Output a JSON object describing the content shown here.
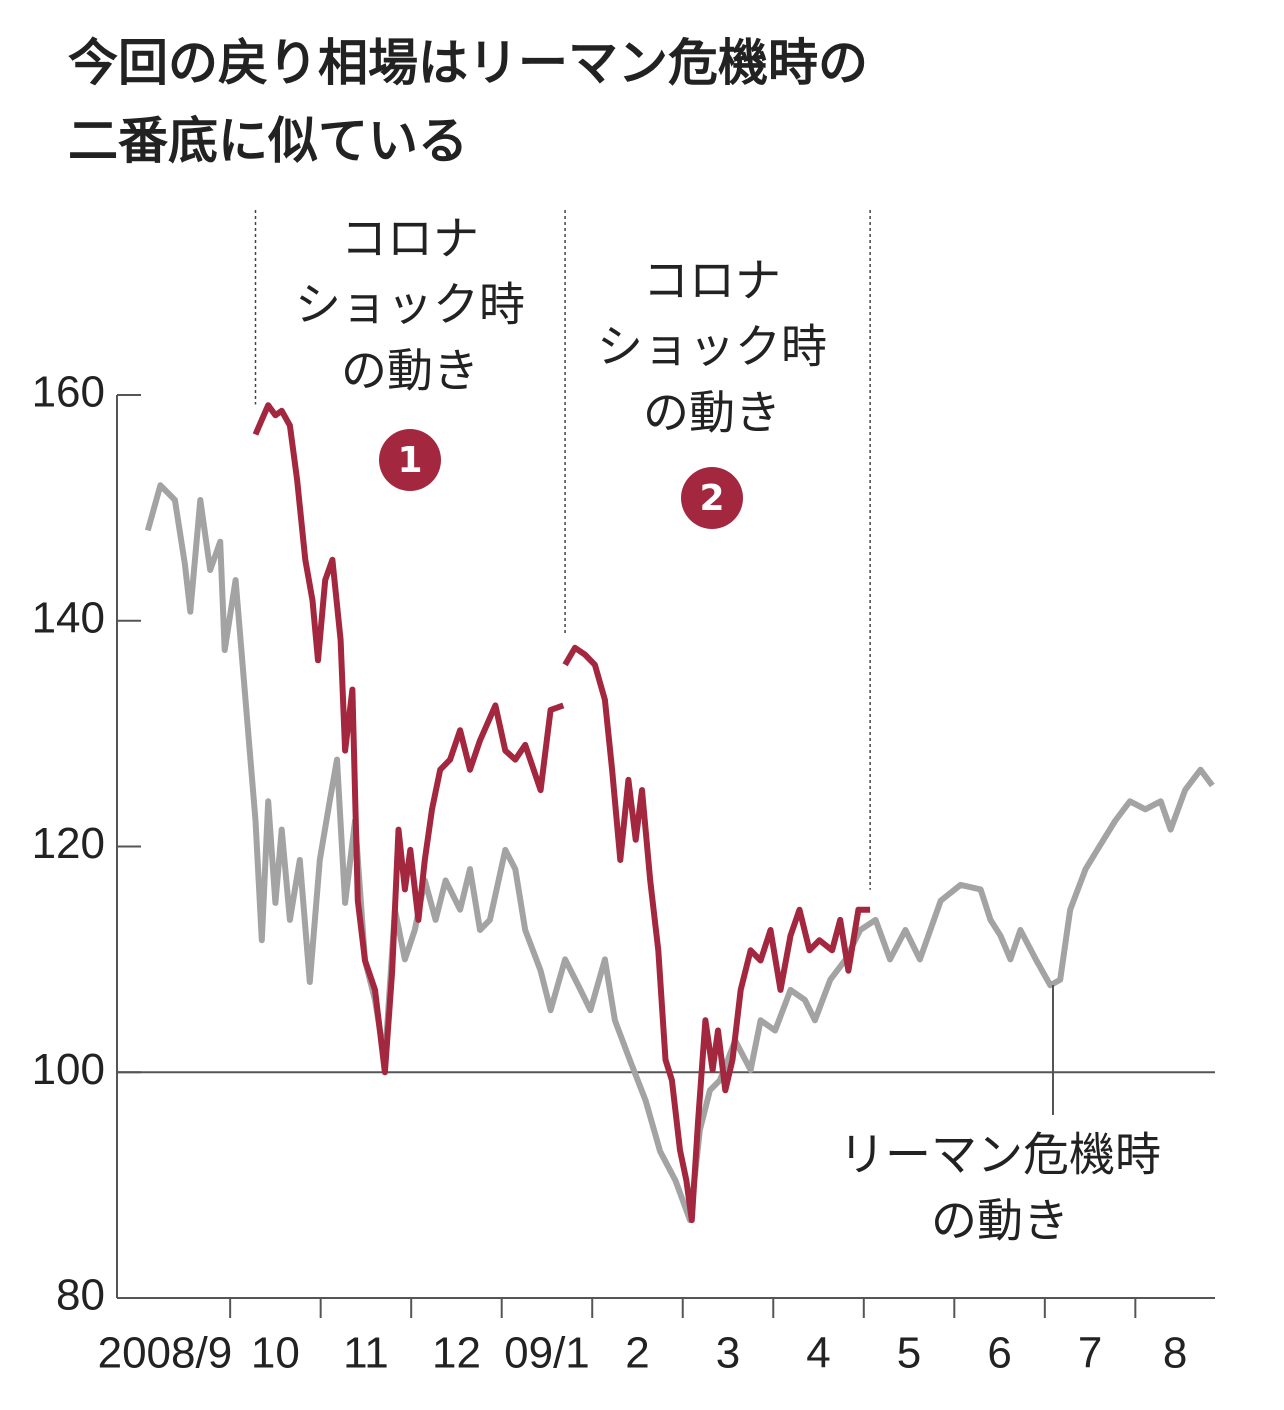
{
  "chart_data": {
    "type": "line",
    "title": [
      "今回の戻り相場はリーマン危機時の",
      "二番底に似ている"
    ],
    "categories": [
      "2008/9",
      "10",
      "11",
      "12",
      "09/1",
      "2",
      "3",
      "4",
      "5",
      "6",
      "7",
      "8"
    ],
    "xlim": [
      -0.25,
      11.88
    ],
    "ylim": [
      80,
      160
    ],
    "yticks": [
      80,
      100,
      120,
      140,
      160
    ],
    "reference_line": 100,
    "series": [
      {
        "color": "#a3a3a3",
        "x": [
          0.09,
          0.23,
          0.39,
          0.5,
          0.56,
          0.67,
          0.78,
          0.89,
          0.94,
          1.06,
          1.17,
          1.28,
          1.35,
          1.42,
          1.5,
          1.57,
          1.66,
          1.77,
          1.88,
          1.99,
          2.1,
          2.18,
          2.27,
          2.38,
          2.49,
          2.6,
          2.71,
          2.82,
          2.93,
          3.04,
          3.15,
          3.27,
          3.38,
          3.54,
          3.65,
          3.76,
          3.87,
          4.04,
          4.15,
          4.26,
          4.43,
          4.54,
          4.7,
          4.87,
          4.98,
          5.14,
          5.25,
          5.42,
          5.59,
          5.75,
          5.92,
          6.08,
          6.19,
          6.3,
          6.41,
          6.58,
          6.75,
          6.86,
          7.02,
          7.19,
          7.35,
          7.46,
          7.63,
          7.8,
          7.96,
          8.13,
          8.29,
          8.46,
          8.62,
          8.85,
          9.07,
          9.29,
          9.4,
          9.51,
          9.62,
          9.73,
          9.9,
          10.06,
          10.17,
          10.28,
          10.45,
          10.61,
          10.78,
          10.94,
          11.11,
          11.28,
          11.39,
          11.55,
          11.72,
          11.85
        ],
        "values": [
          148.0,
          152,
          150.7,
          145,
          140.8,
          150.7,
          144.5,
          147,
          137.4,
          143.6,
          133,
          122.3,
          111.7,
          124,
          115,
          121.5,
          113.5,
          118.8,
          108,
          118.8,
          124,
          127.7,
          115,
          122.3,
          109.9,
          106.4,
          101,
          114.4,
          110,
          112.6,
          117,
          113.5,
          117,
          114.4,
          118,
          112.6,
          113.5,
          119.7,
          118,
          112.6,
          109,
          105.5,
          110,
          107.3,
          105.5,
          110,
          104.6,
          101,
          97.5,
          93,
          90.4,
          86.9,
          94.9,
          98.4,
          99.3,
          102.8,
          100.2,
          104.6,
          103.7,
          107.3,
          106.4,
          104.6,
          108.2,
          110,
          112.6,
          113.5,
          110,
          112.6,
          110,
          115.2,
          116.6,
          116.2,
          113.5,
          112.1,
          110,
          112.6,
          110,
          107.7,
          108.2,
          114.4,
          118,
          120.1,
          122.3,
          124,
          123.3,
          124,
          121.5,
          125,
          126.8,
          125.4
        ]
      },
      {
        "color": "#a3283f",
        "x": [
          1.28,
          1.35,
          1.42,
          1.5,
          1.57,
          1.66,
          1.74,
          1.83,
          1.91,
          1.97,
          2.05,
          2.13,
          2.22,
          2.27,
          2.35,
          2.41,
          2.49,
          2.6,
          2.71,
          2.79,
          2.86,
          2.93,
          2.99,
          3.08,
          3.15,
          3.23,
          3.32,
          3.43,
          3.54,
          3.65,
          3.76,
          3.93,
          4.04,
          4.15,
          4.26,
          4.43,
          4.54,
          4.68
        ],
        "values": [
          156.5,
          157.8,
          159.1,
          158.2,
          158.6,
          157.3,
          152.5,
          145.4,
          141.8,
          136.5,
          143.6,
          145.4,
          138.3,
          128.5,
          133.9,
          115.2,
          109.9,
          107.3,
          100,
          109,
          121.5,
          116.2,
          119.7,
          113.5,
          118.8,
          123.3,
          126.8,
          127.7,
          130.3,
          126.8,
          129.4,
          132.5,
          128.5,
          127.7,
          129,
          125,
          132.1,
          132.5
        ]
      },
      {
        "color": "#a3283f",
        "x": [
          4.7,
          4.81,
          4.92,
          5.03,
          5.14,
          5.22,
          5.31,
          5.4,
          5.48,
          5.55,
          5.64,
          5.73,
          5.81,
          5.88,
          5.97,
          6.04,
          6.1,
          6.17,
          6.25,
          6.33,
          6.39,
          6.47,
          6.55,
          6.64,
          6.75,
          6.86,
          6.97,
          7.08,
          7.19,
          7.29,
          7.4,
          7.51,
          7.65,
          7.74,
          7.83,
          7.94,
          8.07
        ],
        "values": [
          136.1,
          137.6,
          137,
          136.1,
          133,
          126.8,
          118.8,
          125.9,
          120.6,
          125,
          117,
          110.8,
          101.1,
          99.3,
          93.1,
          90.4,
          86.9,
          95.7,
          104.6,
          100.2,
          103.7,
          98.4,
          101.1,
          107.3,
          110.8,
          109.9,
          112.6,
          107.3,
          112.1,
          114.4,
          110.8,
          111.7,
          110.8,
          113.5,
          109,
          114.4,
          114.4
        ]
      }
    ],
    "annotations": [
      {
        "lines": [
          "コロナ",
          "ショック時",
          "の動き"
        ],
        "badge": "1"
      },
      {
        "lines": [
          "コロナ",
          "ショック時",
          "の動き"
        ],
        "badge": "2"
      },
      {
        "lines": [
          "リーマン危機時",
          "の動き"
        ]
      }
    ]
  }
}
